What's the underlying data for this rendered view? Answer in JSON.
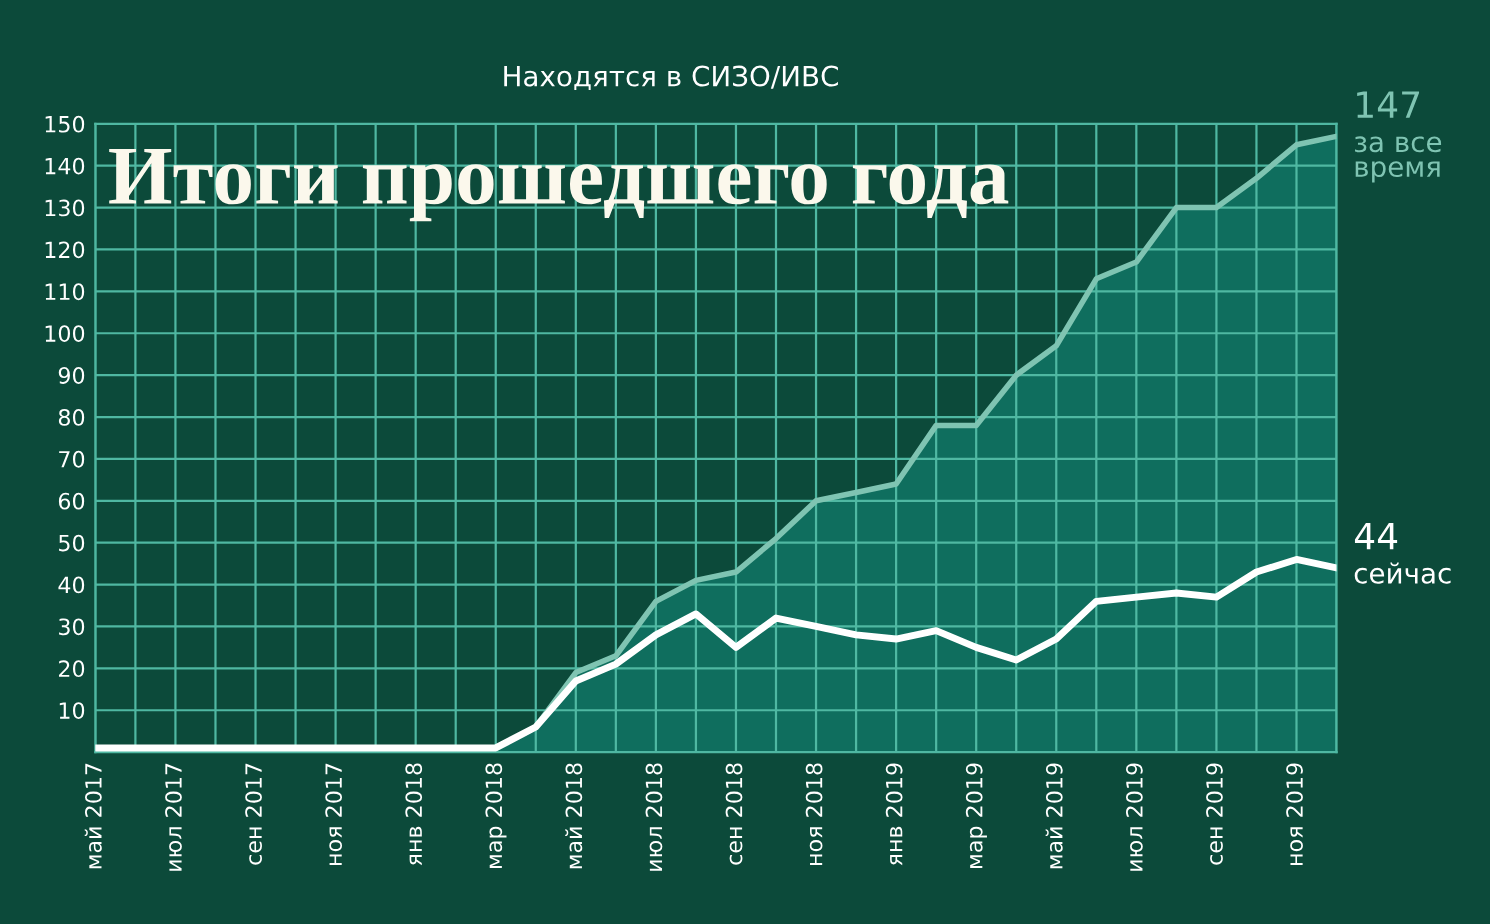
{
  "chart_data": {
    "type": "line",
    "title": "Находятся в СИЗО/ИВС",
    "categories": [
      "май 2017",
      null,
      "июл 2017",
      null,
      "сен 2017",
      null,
      "ноя 2017",
      null,
      "янв 2018",
      null,
      "мар 2018",
      null,
      "май 2018",
      null,
      "июл 2018",
      null,
      "сен 2018",
      null,
      "ноя 2018",
      null,
      "янв 2019",
      null,
      "мар 2019",
      null,
      "май 2019",
      null,
      "июл 2019",
      null,
      "сен 2019",
      null,
      "ноя 2019",
      null
    ],
    "series": [
      {
        "name": "за все время",
        "type": "area",
        "color": "#7fc4b2",
        "values": [
          1,
          1,
          1,
          1,
          1,
          1,
          1,
          1,
          1,
          1,
          1,
          6,
          19,
          23,
          36,
          41,
          43,
          51,
          60,
          62,
          64,
          78,
          78,
          90,
          97,
          113,
          117,
          130,
          130,
          137,
          145,
          147
        ],
        "value_labels": [
          null,
          null,
          null,
          null,
          null,
          null,
          null,
          null,
          null,
          null,
          null,
          null,
          null,
          null,
          null,
          null,
          null,
          null,
          null,
          null,
          null,
          null,
          null,
          null,
          null,
          null,
          null,
          null,
          null,
          null,
          null,
          "147"
        ]
      },
      {
        "name": "сейчас",
        "color": "#ffffff",
        "values": [
          1,
          1,
          1,
          1,
          1,
          1,
          1,
          1,
          1,
          1,
          1,
          6,
          17,
          21,
          28,
          33,
          25,
          32,
          30,
          28,
          27,
          29,
          25,
          22,
          27,
          36,
          37,
          38,
          37,
          43,
          46,
          44
        ],
        "value_labels": [
          null,
          null,
          null,
          null,
          null,
          null,
          null,
          null,
          null,
          null,
          null,
          null,
          null,
          null,
          null,
          null,
          null,
          null,
          null,
          null,
          null,
          null,
          null,
          null,
          null,
          null,
          null,
          null,
          null,
          null,
          null,
          "44"
        ]
      }
    ],
    "ylim": [
      0,
      150
    ],
    "yticks": [
      10,
      20,
      30,
      40,
      50,
      60,
      70,
      80,
      90,
      100,
      110,
      120,
      130,
      140,
      150
    ],
    "grid": true,
    "legend": false,
    "marker": "none",
    "line_style": "solid",
    "annotations": [
      "Итоги прошедшего года"
    ]
  }
}
